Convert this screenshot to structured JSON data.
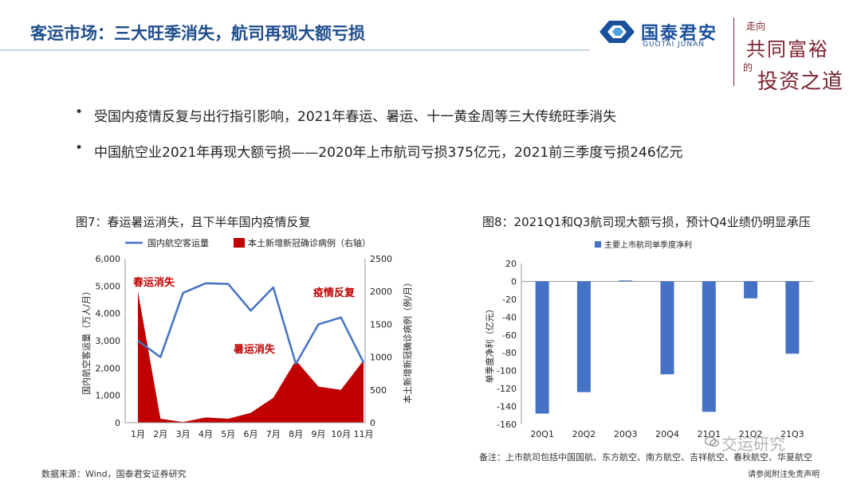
{
  "slide": {
    "title": "客运市场：三大旺季消失，航司再现大额亏损"
  },
  "brand": {
    "logo_cn": "国泰君安",
    "logo_en": "GUOTAI JUNAN",
    "slogan_line1": "走向",
    "slogan_line2": "共同富裕",
    "slogan_line3": "的",
    "slogan_line4": "投资之道",
    "primary_color": "#1a4f9c",
    "slogan_color": "#7c2230"
  },
  "bullets": [
    "受国内疫情反复与出行指引影响，2021年春运、暑运、十一黄金周等三大传统旺季消失",
    "中国航空业2021年再现大额亏损——2020年上市航司亏损375亿元，2021前三季度亏损246亿元"
  ],
  "captions": {
    "fig7": "图7：春运暑运消失，且下半年国内疫情反复",
    "fig8": "图8：2021Q1和Q3航司现大额亏损，预计Q4业绩仍明显承压"
  },
  "chart_data": [
    {
      "type": "line+area",
      "x": [
        "1月",
        "2月",
        "3月",
        "4月",
        "5月",
        "6月",
        "7月",
        "8月",
        "9月",
        "10月",
        "11月"
      ],
      "series": [
        {
          "name": "国内航空客运量",
          "kind": "line",
          "axis": "left",
          "color": "#4472c4",
          "values": [
            3000,
            2400,
            4750,
            5100,
            5080,
            4100,
            4950,
            2150,
            3600,
            3850,
            2200
          ]
        },
        {
          "name": "本土新增新冠确诊病例（右轴）",
          "kind": "area",
          "axis": "right",
          "color": "#c00000",
          "values": [
            2000,
            60,
            10,
            80,
            60,
            150,
            380,
            950,
            550,
            500,
            950
          ]
        }
      ],
      "ylabel_left": "国内航空客运量（万人/月）",
      "ylabel_right": "本土新增新冠确诊病例（例/月）",
      "ylim_left": [
        0,
        6000
      ],
      "ylim_right": [
        0,
        2500
      ],
      "yticks_left": [
        "0",
        "1,000",
        "2,000",
        "3,000",
        "4,000",
        "5,000",
        "6,000"
      ],
      "yticks_right": [
        "0",
        "500",
        "1000",
        "1500",
        "2000",
        "2500"
      ],
      "legend_position": "top",
      "annotations": [
        {
          "text": "春运消失",
          "color": "#c00000"
        },
        {
          "text": "暑运消失",
          "color": "#c00000"
        },
        {
          "text": "疫情反复",
          "color": "#c00000"
        }
      ]
    },
    {
      "type": "bar",
      "categories": [
        "20Q1",
        "20Q2",
        "20Q3",
        "20Q4",
        "21Q1",
        "21Q2",
        "21Q3"
      ],
      "series": [
        {
          "name": "主要上市航司单季度净利",
          "color": "#4472c4",
          "values": [
            -148,
            -124,
            1,
            -104,
            -146,
            -19,
            -81
          ]
        }
      ],
      "ylabel": "单季度净利（亿元）",
      "ylim": [
        -160,
        20
      ],
      "yticks": [
        "-160",
        "-140",
        "-120",
        "-100",
        "-80",
        "-60",
        "-40",
        "-20",
        "0",
        "20"
      ],
      "legend_position": "top"
    }
  ],
  "footer": {
    "source": "数据来源：Wind，国泰君安证券研究",
    "note": "备注：上市航司包括中国国航、东方航空、南方航空、吉祥航空、春秋航空、华夏航空",
    "disclaimer": "请参阅附注免责声明",
    "watermark": "交运研究"
  }
}
